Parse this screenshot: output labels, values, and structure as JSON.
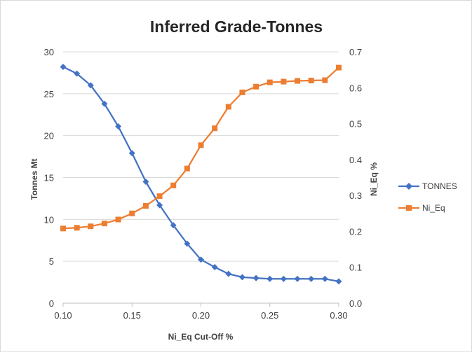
{
  "chart_data": {
    "type": "line",
    "title": "Inferred Grade-Tonnes",
    "xlabel": "Ni_Eq Cut-Off %",
    "ylabel": "Tonnes Mt",
    "y2label": "Ni_Eq %",
    "xlim": [
      0.1,
      0.3
    ],
    "ylim": [
      0,
      30
    ],
    "y2lim": [
      0,
      0.7
    ],
    "xticks": [
      "0.10",
      "0.15",
      "0.20",
      "0.25",
      "0.30"
    ],
    "yticks": [
      "0",
      "5",
      "10",
      "15",
      "20",
      "25",
      "30"
    ],
    "y2ticks": [
      "0.0",
      "0.1",
      "0.2",
      "0.3",
      "0.4",
      "0.5",
      "0.6",
      "0.7"
    ],
    "grid": "horizontal",
    "legend_position": "right",
    "x": [
      0.1,
      0.11,
      0.12,
      0.13,
      0.14,
      0.15,
      0.16,
      0.17,
      0.18,
      0.19,
      0.2,
      0.21,
      0.22,
      0.23,
      0.24,
      0.25,
      0.26,
      0.27,
      0.28,
      0.29,
      0.3
    ],
    "series": [
      {
        "name": "TONNES",
        "axis": "left",
        "color": "#4472c4",
        "marker": "diamond",
        "values": [
          28.2,
          27.4,
          26.0,
          23.8,
          21.1,
          17.9,
          14.5,
          11.7,
          9.3,
          7.1,
          5.2,
          4.3,
          3.5,
          3.1,
          3.0,
          2.9,
          2.9,
          2.9,
          2.9,
          2.9,
          2.6
        ]
      },
      {
        "name": "Ni_Eq",
        "axis": "right",
        "color": "#ed7d31",
        "marker": "square",
        "values": [
          0.208,
          0.21,
          0.214,
          0.222,
          0.233,
          0.25,
          0.271,
          0.298,
          0.328,
          0.375,
          0.44,
          0.487,
          0.547,
          0.587,
          0.603,
          0.615,
          0.617,
          0.619,
          0.62,
          0.621,
          0.656
        ]
      }
    ]
  }
}
